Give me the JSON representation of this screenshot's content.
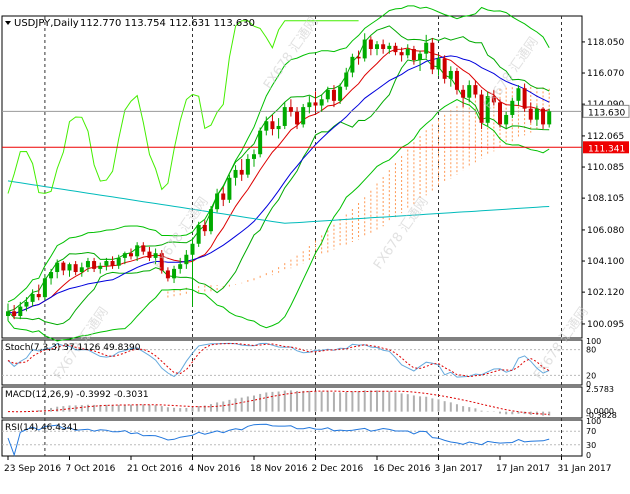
{
  "chart_data": {
    "type": "candlestick",
    "symbol_label": "USDJPY,Daily",
    "ohlc_header": "112.770 113.754 112.631 113.630",
    "watermark_text": "FX678 汇通网",
    "colors": {
      "bull": "#00aa00",
      "bear": "#cc0000",
      "bb_outer": "#00c000",
      "bb_inner": "#00aa00",
      "ma_red": "#dd0000",
      "ma_blue": "#0000dd",
      "ma_cyan": "#00bbbb",
      "lime": "#44ee00",
      "cloud": "#ff9955",
      "hline_red": "#ee0000",
      "hline_gray": "#999999",
      "stoch_main": "#66aadd",
      "stoch_signal": "#dd0000",
      "macd_hist": "#b0b0b0",
      "macd_signal": "#dd0000",
      "rsi": "#2277dd",
      "grid_dash": "#333333"
    },
    "price_axis": {
      "ylim": [
        99.2,
        119.7
      ],
      "ticks": [
        "118.050",
        "116.070",
        "114.090",
        "112.065",
        "110.085",
        "108.105",
        "106.080",
        "104.100",
        "102.120",
        "100.095"
      ],
      "tick_values": [
        118.05,
        116.07,
        114.09,
        112.065,
        110.085,
        108.105,
        106.08,
        104.1,
        102.12,
        100.095
      ],
      "current_price": "113.630",
      "current_value": 113.63,
      "red_line": "111.341",
      "red_value": 111.341
    },
    "x_axis": {
      "labels": [
        "23 Sep 2016",
        "7 Oct 2016",
        "21 Oct 2016",
        "4 Nov 2016",
        "18 Nov 2016",
        "2 Dec 2016",
        "16 Dec 2016",
        "3 Jan 2017",
        "17 Jan 2017",
        "31 Jan 2017"
      ],
      "label_bars": [
        0,
        10,
        20,
        30,
        40,
        50,
        60,
        70,
        80,
        90
      ],
      "separator_bars": [
        6,
        30,
        50,
        70,
        90
      ]
    },
    "candles": [
      [
        100.6,
        101.4,
        100.3,
        100.9
      ],
      [
        100.9,
        101.3,
        100.4,
        100.6
      ],
      [
        100.6,
        101.5,
        100.4,
        101.2
      ],
      [
        101.2,
        101.8,
        100.9,
        101.5
      ],
      [
        101.5,
        102.3,
        101.2,
        102.0
      ],
      [
        102.0,
        102.6,
        101.6,
        101.8
      ],
      [
        101.8,
        103.2,
        101.6,
        103.0
      ],
      [
        103.0,
        103.6,
        102.6,
        103.4
      ],
      [
        103.4,
        104.2,
        103.0,
        104.0
      ],
      [
        104.0,
        104.1,
        103.2,
        103.5
      ],
      [
        103.5,
        104.0,
        103.1,
        103.9
      ],
      [
        103.9,
        104.1,
        103.2,
        103.4
      ],
      [
        103.4,
        104.0,
        103.1,
        103.7
      ],
      [
        103.7,
        104.3,
        103.4,
        104.1
      ],
      [
        104.1,
        104.3,
        103.4,
        103.6
      ],
      [
        103.6,
        104.0,
        103.3,
        103.8
      ],
      [
        103.8,
        104.3,
        103.5,
        104.1
      ],
      [
        104.1,
        104.4,
        103.6,
        103.8
      ],
      [
        103.8,
        104.5,
        103.6,
        104.3
      ],
      [
        104.3,
        104.7,
        103.9,
        104.6
      ],
      [
        104.6,
        104.9,
        104.2,
        104.4
      ],
      [
        104.4,
        105.3,
        104.1,
        105.1
      ],
      [
        105.1,
        105.3,
        104.5,
        104.7
      ],
      [
        104.7,
        105.0,
        104.1,
        104.3
      ],
      [
        104.3,
        104.9,
        103.9,
        104.6
      ],
      [
        104.6,
        104.8,
        103.3,
        103.5
      ],
      [
        103.5,
        103.7,
        102.8,
        103.0
      ],
      [
        103.0,
        103.8,
        102.7,
        103.6
      ],
      [
        103.6,
        104.3,
        103.3,
        103.9
      ],
      [
        103.9,
        104.8,
        103.6,
        104.5
      ],
      [
        104.5,
        105.6,
        101.2,
        105.2
      ],
      [
        105.2,
        106.6,
        105.0,
        106.4
      ],
      [
        106.4,
        106.7,
        105.7,
        106.0
      ],
      [
        106.0,
        107.6,
        105.8,
        107.4
      ],
      [
        107.4,
        108.7,
        107.2,
        108.4
      ],
      [
        108.4,
        108.8,
        107.6,
        108.0
      ],
      [
        108.0,
        109.6,
        107.8,
        109.4
      ],
      [
        109.4,
        110.2,
        108.9,
        109.9
      ],
      [
        109.9,
        110.6,
        109.2,
        109.6
      ],
      [
        109.6,
        110.9,
        109.4,
        110.6
      ],
      [
        110.6,
        111.2,
        110.1,
        110.9
      ],
      [
        110.9,
        112.6,
        110.7,
        112.4
      ],
      [
        112.4,
        113.3,
        112.1,
        113.0
      ],
      [
        113.0,
        113.4,
        112.1,
        112.5
      ],
      [
        112.5,
        113.2,
        111.9,
        112.7
      ],
      [
        112.7,
        114.2,
        112.5,
        113.9
      ],
      [
        113.9,
        114.4,
        113.3,
        113.6
      ],
      [
        113.6,
        113.9,
        112.5,
        112.8
      ],
      [
        112.8,
        114.1,
        112.6,
        113.9
      ],
      [
        113.9,
        114.6,
        113.5,
        114.2
      ],
      [
        114.2,
        114.9,
        113.6,
        114.0
      ],
      [
        114.0,
        114.7,
        113.6,
        114.4
      ],
      [
        114.4,
        115.2,
        114.2,
        115.0
      ],
      [
        115.0,
        115.3,
        113.9,
        114.3
      ],
      [
        114.3,
        115.4,
        114.1,
        115.2
      ],
      [
        115.2,
        116.4,
        115.0,
        116.1
      ],
      [
        116.1,
        117.3,
        115.8,
        117.1
      ],
      [
        117.1,
        117.5,
        116.6,
        117.0
      ],
      [
        117.0,
        118.6,
        116.8,
        118.2
      ],
      [
        118.2,
        118.4,
        117.2,
        117.6
      ],
      [
        117.6,
        118.1,
        117.2,
        117.9
      ],
      [
        117.9,
        118.2,
        117.3,
        117.6
      ],
      [
        117.6,
        118.0,
        117.3,
        117.8
      ],
      [
        117.8,
        118.0,
        117.2,
        117.4
      ],
      [
        117.4,
        117.7,
        116.8,
        117.2
      ],
      [
        117.2,
        117.9,
        117.0,
        117.6
      ],
      [
        117.6,
        117.8,
        116.6,
        116.9
      ],
      [
        116.9,
        117.5,
        116.2,
        117.3
      ],
      [
        117.3,
        118.5,
        117.0,
        118.0
      ],
      [
        118.0,
        118.3,
        116.0,
        116.3
      ],
      [
        116.3,
        117.2,
        115.9,
        117.0
      ],
      [
        117.0,
        117.2,
        115.4,
        115.7
      ],
      [
        115.7,
        116.5,
        115.2,
        116.2
      ],
      [
        116.2,
        116.4,
        114.7,
        115.0
      ],
      [
        115.0,
        115.3,
        113.9,
        114.5
      ],
      [
        114.5,
        115.6,
        114.2,
        115.3
      ],
      [
        115.3,
        115.6,
        114.5,
        114.7
      ],
      [
        114.7,
        115.0,
        112.5,
        112.9
      ],
      [
        112.9,
        114.9,
        112.7,
        114.6
      ],
      [
        114.6,
        115.0,
        114.0,
        114.2
      ],
      [
        114.2,
        114.4,
        112.6,
        112.8
      ],
      [
        112.8,
        113.6,
        112.5,
        113.4
      ],
      [
        113.4,
        114.5,
        113.2,
        114.3
      ],
      [
        114.3,
        115.3,
        114.0,
        115.1
      ],
      [
        115.1,
        115.4,
        113.6,
        113.8
      ],
      [
        113.8,
        114.2,
        112.9,
        113.1
      ],
      [
        113.1,
        114.0,
        112.7,
        113.8
      ],
      [
        113.8,
        113.9,
        112.5,
        112.8
      ],
      [
        112.8,
        113.8,
        112.6,
        113.63
      ]
    ],
    "stochastic": {
      "label": "Stoch(7,3,3) 37.1126 49.8390",
      "scale": [
        "100",
        "80",
        "20",
        "0"
      ]
    },
    "macd": {
      "label": "MACD(12,26,9) -0.3992 -0.3031",
      "scale": [
        "2.5783",
        "0.0000",
        "-0.3828"
      ]
    },
    "rsi": {
      "label": "RSI(14) 46.4341",
      "scale": [
        "100",
        "70",
        "30",
        "0"
      ]
    }
  }
}
